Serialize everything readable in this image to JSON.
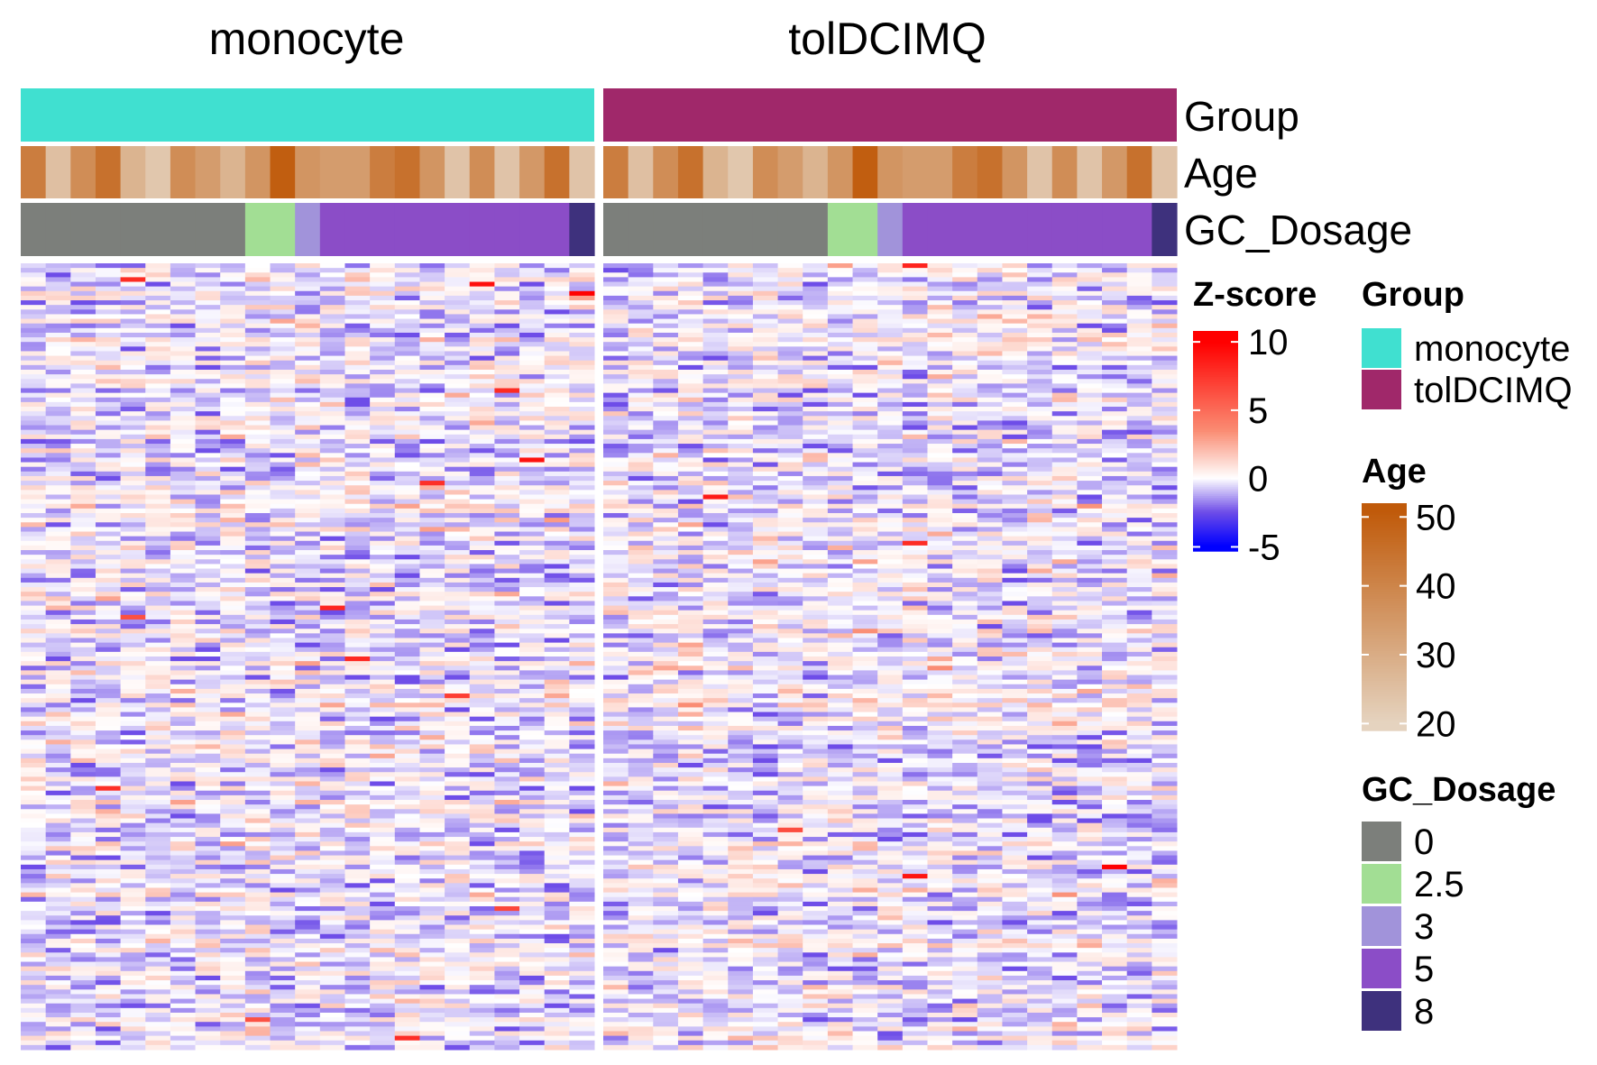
{
  "chart_data": {
    "type": "heatmap",
    "title": "",
    "panels": [
      {
        "name": "monocyte",
        "n_samples": 23,
        "group_color": "#40E0D0"
      },
      {
        "name": "tolDCIMQ",
        "n_samples": 23,
        "group_color": "#A0286A"
      }
    ],
    "n_rows": 170,
    "annotation_tracks": [
      "Group",
      "Age",
      "GC_Dosage"
    ],
    "sample_age": [
      42,
      25,
      38,
      45,
      28,
      23,
      38,
      34,
      28,
      36,
      50,
      36,
      34,
      34,
      42,
      45,
      36,
      24,
      38,
      24,
      35,
      45,
      24
    ],
    "sample_gc_dosage": [
      0,
      0,
      0,
      0,
      0,
      0,
      0,
      0,
      0,
      2.5,
      2.5,
      3,
      5,
      5,
      5,
      5,
      5,
      5,
      5,
      5,
      5,
      5,
      8
    ],
    "zscore_scale": {
      "title": "Z-score",
      "ticks": [
        "10",
        "5",
        "0",
        "-5"
      ],
      "tick_values": [
        10,
        5,
        0,
        -5
      ],
      "min": -5.3,
      "max": 10.8,
      "colors": {
        "low": "#0000FF",
        "mid_low": "#6E4DE8",
        "zero": "#FFFFFF",
        "mid_high": "#FA8C73",
        "high": "#FF0000"
      }
    },
    "cell_value_summary": {
      "typical_range": [
        -2.5,
        3.5
      ],
      "outliers_up_to": 10.5
    },
    "legends": {
      "group": {
        "title": "Group",
        "items": [
          {
            "label": "monocyte",
            "color": "#40E0D0"
          },
          {
            "label": "tolDCIMQ",
            "color": "#A0286A"
          }
        ]
      },
      "age": {
        "title": "Age",
        "ticks": [
          "50",
          "40",
          "30",
          "20"
        ],
        "tick_values": [
          50,
          40,
          30,
          20
        ],
        "min": 19,
        "max": 52,
        "color_low": "#E5D3BF",
        "color_high": "#C05A0A"
      },
      "gc_dosage": {
        "title": "GC_Dosage",
        "items": [
          {
            "label": "0",
            "color": "#7C7F7B"
          },
          {
            "label": "2.5",
            "color": "#A2DE94"
          },
          {
            "label": "3",
            "color": "#A193DA"
          },
          {
            "label": "5",
            "color": "#8B4DC7"
          },
          {
            "label": "8",
            "color": "#3E317D"
          }
        ]
      }
    }
  }
}
